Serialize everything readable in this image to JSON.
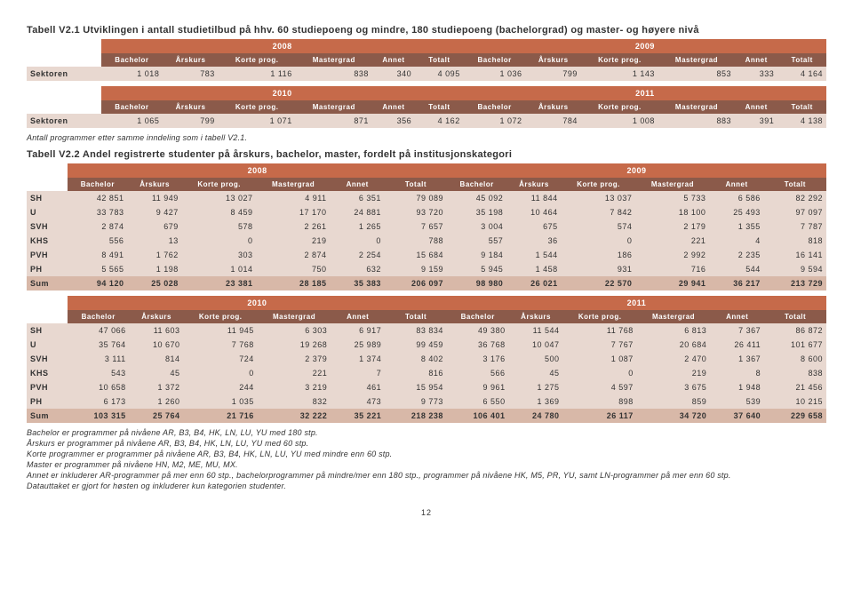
{
  "titles": {
    "t1": "Tabell V2.1 Utviklingen i antall studietilbud på hhv. 60 studiepoeng og mindre, 180 studiepoeng (bachelorgrad) og master- og høyere nivå",
    "t2": "Tabell V2.2 Andel registrerte studenter på årskurs, bachelor, master, fordelt på institusjonskategori"
  },
  "years": {
    "y08": "2008",
    "y09": "2009",
    "y10": "2010",
    "y11": "2011"
  },
  "cols": {
    "bachelor": "Bachelor",
    "arskurs": "Årskurs",
    "korte": "Korte prog.",
    "master": "Mastergrad",
    "annet": "Annet",
    "totalt": "Totalt"
  },
  "t1a": {
    "label": "Sektoren",
    "r": [
      "1 018",
      "783",
      "1 116",
      "838",
      "340",
      "4 095",
      "1 036",
      "799",
      "1 143",
      "853",
      "333",
      "4 164"
    ]
  },
  "t1b": {
    "label": "Sektoren",
    "r": [
      "1 065",
      "799",
      "1 071",
      "871",
      "356",
      "4 162",
      "1 072",
      "784",
      "1 008",
      "883",
      "391",
      "4 138"
    ]
  },
  "note1": "Antall programmer etter samme inndeling som i tabell V2.1.",
  "t2a": {
    "labels": [
      "SH",
      "U",
      "SVH",
      "KHS",
      "PVH",
      "PH",
      "Sum"
    ],
    "rows": [
      [
        "42 851",
        "11 949",
        "13 027",
        "4 911",
        "6 351",
        "79 089",
        "45 092",
        "11 844",
        "13 037",
        "5 733",
        "6 586",
        "82 292"
      ],
      [
        "33 783",
        "9 427",
        "8 459",
        "17 170",
        "24 881",
        "93 720",
        "35 198",
        "10 464",
        "7 842",
        "18 100",
        "25 493",
        "97 097"
      ],
      [
        "2 874",
        "679",
        "578",
        "2 261",
        "1 265",
        "7 657",
        "3 004",
        "675",
        "574",
        "2 179",
        "1 355",
        "7 787"
      ],
      [
        "556",
        "13",
        "0",
        "219",
        "0",
        "788",
        "557",
        "36",
        "0",
        "221",
        "4",
        "818"
      ],
      [
        "8 491",
        "1 762",
        "303",
        "2 874",
        "2 254",
        "15 684",
        "9 184",
        "1 544",
        "186",
        "2 992",
        "2 235",
        "16 141"
      ],
      [
        "5 565",
        "1 198",
        "1 014",
        "750",
        "632",
        "9 159",
        "5 945",
        "1 458",
        "931",
        "716",
        "544",
        "9 594"
      ],
      [
        "94 120",
        "25 028",
        "23 381",
        "28 185",
        "35 383",
        "206 097",
        "98 980",
        "26 021",
        "22 570",
        "29 941",
        "36 217",
        "213 729"
      ]
    ]
  },
  "t2b": {
    "labels": [
      "SH",
      "U",
      "SVH",
      "KHS",
      "PVH",
      "PH",
      "Sum"
    ],
    "rows": [
      [
        "47 066",
        "11 603",
        "11 945",
        "6 303",
        "6 917",
        "83 834",
        "49 380",
        "11 544",
        "11 768",
        "6 813",
        "7 367",
        "86 872"
      ],
      [
        "35 764",
        "10 670",
        "7 768",
        "19 268",
        "25 989",
        "99 459",
        "36 768",
        "10 047",
        "7 767",
        "20 684",
        "26 411",
        "101 677"
      ],
      [
        "3 111",
        "814",
        "724",
        "2 379",
        "1 374",
        "8 402",
        "3 176",
        "500",
        "1 087",
        "2 470",
        "1 367",
        "8 600"
      ],
      [
        "543",
        "45",
        "0",
        "221",
        "7",
        "816",
        "566",
        "45",
        "0",
        "219",
        "8",
        "838"
      ],
      [
        "10 658",
        "1 372",
        "244",
        "3 219",
        "461",
        "15 954",
        "9 961",
        "1 275",
        "4 597",
        "3 675",
        "1 948",
        "21 456"
      ],
      [
        "6 173",
        "1 260",
        "1 035",
        "832",
        "473",
        "9 773",
        "6 550",
        "1 369",
        "898",
        "859",
        "539",
        "10 215"
      ],
      [
        "103 315",
        "25 764",
        "21 716",
        "32 222",
        "35 221",
        "218 238",
        "106 401",
        "24 780",
        "26 117",
        "34 720",
        "37 640",
        "229 658"
      ]
    ]
  },
  "footnotes": [
    "Bachelor er programmer på nivåene AR, B3, B4, HK, LN, LU, YU med 180 stp.",
    "Årskurs er programmer på nivåene AR, B3, B4, HK, LN, LU, YU med 60 stp.",
    "Korte programmer er programmer på nivåene AR, B3, B4, HK, LN, LU, YU med mindre enn 60 stp.",
    "Master er programmer på nivåene HN, M2, ME, MU, MX.",
    "Annet er inkluderer AR-programmer på mer enn 60 stp., bachelorprogrammer på mindre/mer enn 180 stp., programmer på nivåene HK, M5, PR, YU, samt LN-programmer på mer enn 60 stp.",
    "Datauttaket er gjort for høsten og inkluderer kun kategorien studenter."
  ],
  "pagenum": "12"
}
